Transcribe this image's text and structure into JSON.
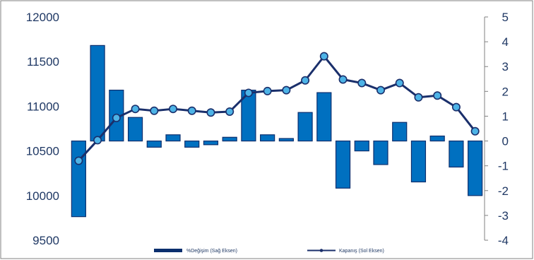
{
  "chart_data": {
    "type": "bar",
    "title": "",
    "xlabel": "",
    "left_axis": {
      "min": 9500,
      "max": 12000,
      "ticks": [
        9500,
        10000,
        10500,
        11000,
        11500,
        12000
      ]
    },
    "right_axis": {
      "min": -4,
      "max": 5,
      "ticks": [
        -4,
        -3,
        -2,
        -1,
        0,
        1,
        2,
        3,
        4,
        5
      ]
    },
    "grid": false,
    "legend_position": "bottom",
    "colors": {
      "bar": "#0070c0",
      "bar_edge": "#0b2f6e",
      "line": "#1a2f6b",
      "marker": "#4db3e6",
      "axis_text": "#1f3864"
    },
    "series": [
      {
        "name": "%Değişim (Sağ Eksen)",
        "type": "bar",
        "axis": "right",
        "values": [
          -3.05,
          3.85,
          2.05,
          0.95,
          -0.25,
          0.25,
          -0.25,
          -0.15,
          0.15,
          2.05,
          0.25,
          0.1,
          1.15,
          1.95,
          -1.9,
          -0.4,
          -0.95,
          0.75,
          -1.65,
          0.2,
          -1.05,
          -2.2
        ]
      },
      {
        "name": "Kapanış (Sol Eksen)",
        "type": "line",
        "axis": "left",
        "values": [
          10390,
          10620,
          10870,
          10970,
          10950,
          10970,
          10950,
          10930,
          10940,
          11150,
          11170,
          11180,
          11290,
          11560,
          11300,
          11260,
          11180,
          11260,
          11100,
          11120,
          10990,
          10720
        ]
      }
    ]
  }
}
